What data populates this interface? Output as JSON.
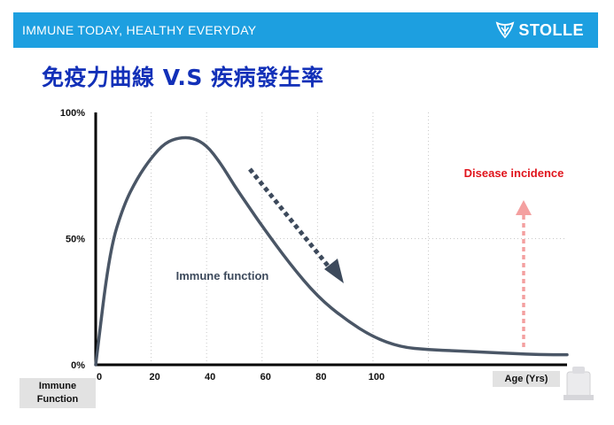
{
  "header": {
    "tagline": "IMMUNE TODAY, HEALTHY EVERYDAY",
    "brand": "STOLLE"
  },
  "chart_data": {
    "type": "line",
    "title": "免疫力曲線 V.S 疾病發生率",
    "xlabel": "Age (Yrs)",
    "ylabel": "Immune Function",
    "x_ticks": [
      "0",
      "20",
      "40",
      "60",
      "80",
      "100"
    ],
    "y_ticks": [
      "100%",
      "50%",
      "0%"
    ],
    "xlim": [
      0,
      170
    ],
    "ylim": [
      0,
      100
    ],
    "grid": true,
    "series": [
      {
        "name": "Immune function",
        "color": "#4a5666",
        "x": [
          0,
          5,
          10,
          15,
          20,
          25,
          30,
          35,
          40,
          45,
          50,
          55,
          60,
          70,
          80,
          90,
          100,
          110,
          120,
          130,
          140,
          150,
          160,
          170
        ],
        "y": [
          0,
          45,
          63,
          74,
          82,
          88,
          90,
          90,
          87,
          80,
          71,
          63,
          55,
          40,
          27,
          18,
          11,
          7,
          6,
          5.5,
          5,
          4.5,
          4,
          4
        ]
      }
    ],
    "annotations": [
      {
        "text": "Disease incidence",
        "color": "#e0141c",
        "arrow": "up",
        "arrow_color": "#f4a0a0"
      },
      {
        "text": "Immune function",
        "color": "#3d4a5c",
        "arrow": "down-right",
        "arrow_color": "#3d4a5c"
      }
    ]
  }
}
